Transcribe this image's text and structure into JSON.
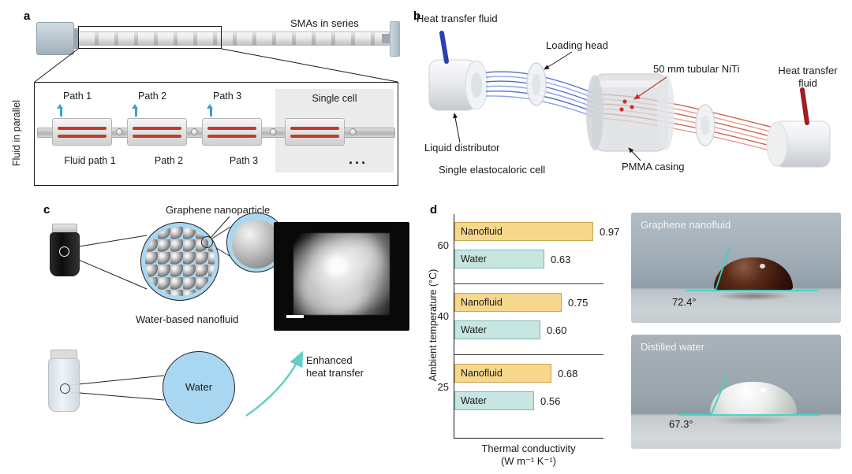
{
  "figure": {
    "panel_a": {
      "tag": "a",
      "smas_in_series": "SMAs in series",
      "fluid_in_parallel": "Fluid in parallel",
      "top_path_1": "Path 1",
      "top_path_2": "Path 2",
      "top_path_3": "Path 3",
      "single_cell": "Single cell",
      "bottom_path_1": "Fluid path 1",
      "bottom_path_2": "Path 2",
      "bottom_path_3": "Path 3",
      "ellipsis": "···"
    },
    "panel_b": {
      "tag": "b",
      "heat_transfer_fluid_left": "Heat transfer fluid",
      "loading_head": "Loading head",
      "tubular_niti": "50 mm tubular NiTi",
      "heat_transfer_fluid_right_line1": "Heat transfer",
      "heat_transfer_fluid_right_line2": "fluid",
      "liquid_distributor": "Liquid distributor",
      "single_elastocaloric_cell": "Single elastocaloric cell",
      "pmma_casing": "PMMA casing"
    },
    "panel_c": {
      "tag": "c",
      "graphene_nanoparticle": "Graphene nanoparticle",
      "water_based_nanofluid": "Water-based nanofluid",
      "water": "Water",
      "enhanced_line1": "Enhanced",
      "enhanced_line2": "heat transfer"
    },
    "panel_d": {
      "tag": "d",
      "xlabel_line1": "Thermal conductivity",
      "xlabel_line2": "(W m⁻¹ K⁻¹)",
      "photo_top_title": "Graphene nanofluid",
      "photo_top_angle": "72.4°",
      "photo_bottom_title": "Distilled water",
      "photo_bottom_angle": "67.3°"
    }
  },
  "chart_data": {
    "type": "bar",
    "orientation": "horizontal",
    "title": "",
    "xlabel": "Thermal conductivity (W m⁻¹ K⁻¹)",
    "ylabel": "Ambient temperature (°C)",
    "categories": [
      "60",
      "40",
      "25"
    ],
    "series": [
      {
        "name": "Nanofluid",
        "values": [
          0.97,
          0.75,
          0.68
        ],
        "color": "#f7d78c",
        "border": "#c9a453"
      },
      {
        "name": "Water",
        "values": [
          0.63,
          0.6,
          0.56
        ],
        "color": "#c7e6e1",
        "border": "#7fb8b1"
      }
    ],
    "xlim": [
      0,
      1.05
    ],
    "value_labels": true,
    "legend": "labels-inside-bars",
    "grid": false,
    "group_separators": true
  }
}
